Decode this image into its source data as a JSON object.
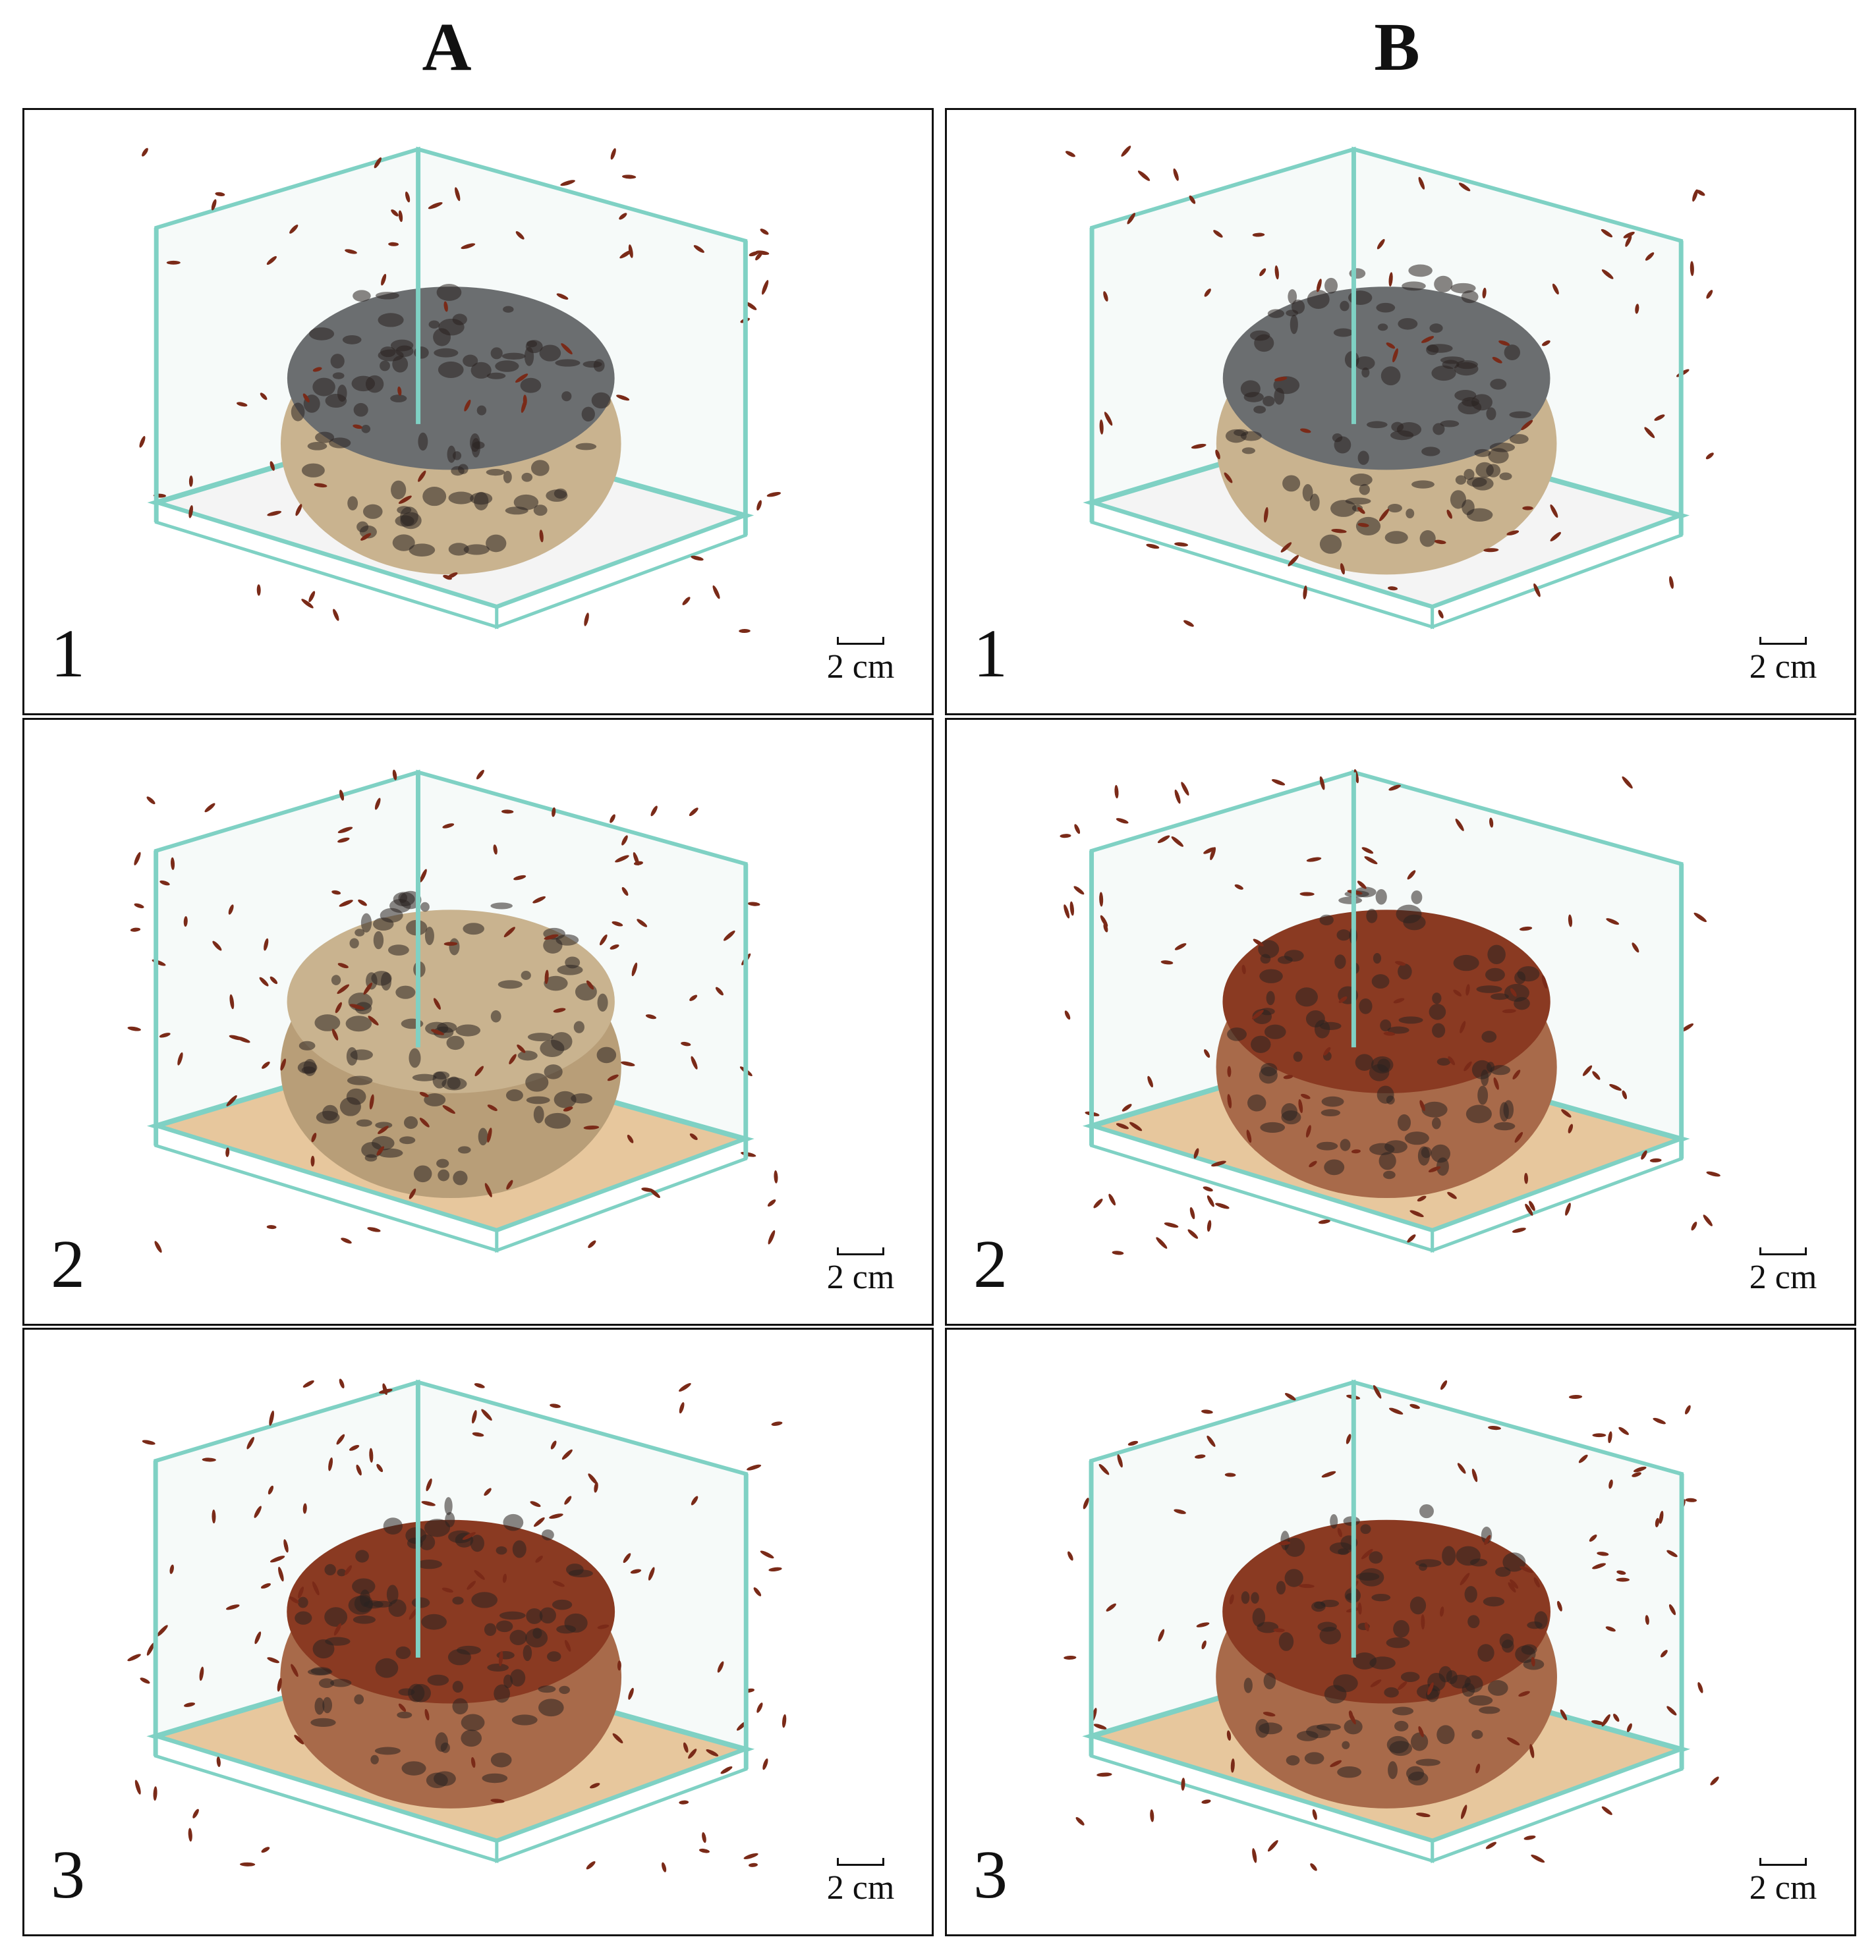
{
  "columns": [
    {
      "heading": "A"
    },
    {
      "heading": "B"
    }
  ],
  "panels": [
    {
      "column": "A",
      "number": "1",
      "scale": "2 cm",
      "variant": "intact-grey",
      "base": "white"
    },
    {
      "column": "B",
      "number": "1",
      "scale": "2 cm",
      "variant": "intact-grey",
      "base": "white"
    },
    {
      "column": "A",
      "number": "2",
      "scale": "2 cm",
      "variant": "beige-partial",
      "base": "tan"
    },
    {
      "column": "B",
      "number": "2",
      "scale": "2 cm",
      "variant": "brown-partial",
      "base": "tan"
    },
    {
      "column": "A",
      "number": "3",
      "scale": "2 cm",
      "variant": "brown-degraded",
      "base": "tan"
    },
    {
      "column": "B",
      "number": "3",
      "scale": "2 cm",
      "variant": "brown-degraded",
      "base": "tan"
    }
  ],
  "colors": {
    "glass_edge": "#7fd1c4",
    "sponge_grey": "#6b6e70",
    "sponge_beige": "#c9b38f",
    "sponge_brown": "#8a3a22",
    "ant": "#7a2a18",
    "base_tan": "#e7c79d"
  }
}
